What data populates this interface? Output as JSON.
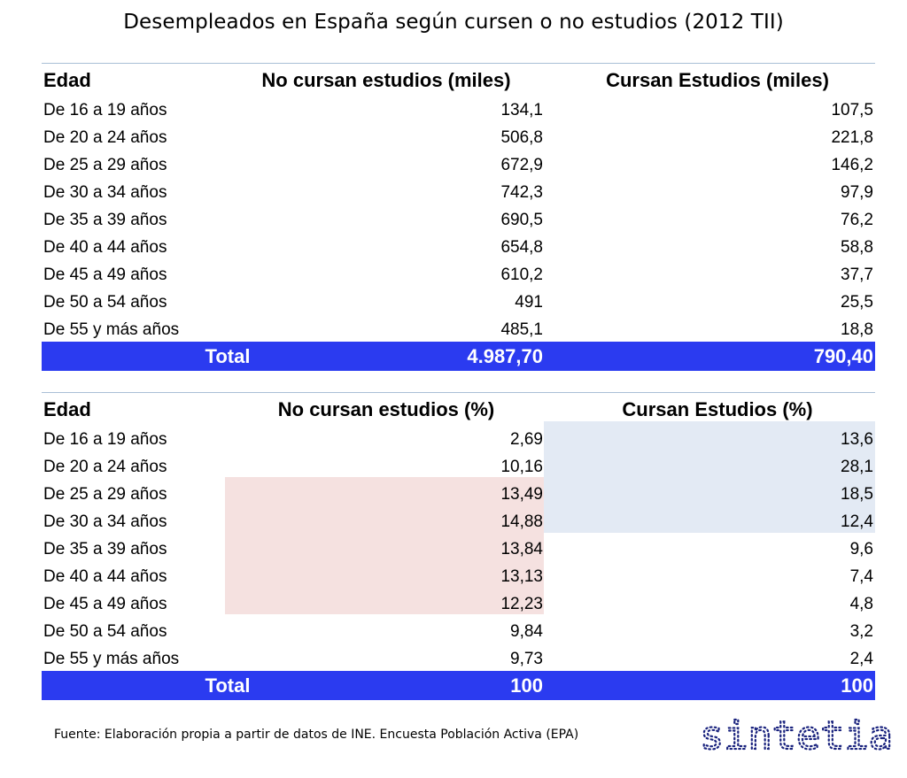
{
  "title": "Desempleados en España según cursen o no estudios (2012 TII)",
  "table1": {
    "headers": [
      "Edad",
      "No cursan estudios (miles)",
      "Cursan Estudios (miles)"
    ],
    "rows": [
      {
        "age": "De 16 a 19 años",
        "no": "134,1",
        "si": "107,5"
      },
      {
        "age": "De 20 a 24 años",
        "no": "506,8",
        "si": "221,8"
      },
      {
        "age": "De 25 a 29 años",
        "no": "672,9",
        "si": "146,2"
      },
      {
        "age": "De 30 a 34 años",
        "no": "742,3",
        "si": "97,9"
      },
      {
        "age": "De 35 a 39 años",
        "no": "690,5",
        "si": "76,2"
      },
      {
        "age": "De 40 a 44 años",
        "no": "654,8",
        "si": "58,8"
      },
      {
        "age": "De 45 a 49 años",
        "no": "610,2",
        "si": "37,7"
      },
      {
        "age": "De 50 a 54 años",
        "no": "491",
        "si": "25,5"
      },
      {
        "age": "De 55 y más años",
        "no": "485,1",
        "si": "18,8"
      }
    ],
    "total": {
      "label": "Total",
      "no": "4.987,70",
      "si": "790,40"
    }
  },
  "table2": {
    "headers": [
      "Edad",
      "No cursan estudios (%)",
      "Cursan Estudios (%)"
    ],
    "rows": [
      {
        "age": "De 16 a 19 años",
        "no": "2,69",
        "si": "13,6"
      },
      {
        "age": "De 20 a 24 años",
        "no": "10,16",
        "si": "28,1"
      },
      {
        "age": "De 25 a 29 años",
        "no": "13,49",
        "si": "18,5"
      },
      {
        "age": "De 30 a 34 años",
        "no": "14,88",
        "si": "12,4"
      },
      {
        "age": "De 35 a 39 años",
        "no": "13,84",
        "si": "9,6"
      },
      {
        "age": "De 40 a 44 años",
        "no": "13,13",
        "si": "7,4"
      },
      {
        "age": "De 45 a 49 años",
        "no": "12,23",
        "si": "4,8"
      },
      {
        "age": "De 50 a 54 años",
        "no": "9,84",
        "si": "3,2"
      },
      {
        "age": "De 55 y más años",
        "no": "9,73",
        "si": "2,4"
      }
    ],
    "total": {
      "label": "Total",
      "no": "100",
      "si": "100"
    }
  },
  "colors": {
    "total_bar": "#2b3bf0",
    "highlight_red": "#f5e1e0",
    "highlight_blue": "#e3eaf4",
    "logo": "#1a237e"
  },
  "footer": "Fuente: Elaboración propia a partir de datos de INE. Encuesta Población Activa (EPA)",
  "logo_text": "sintetia"
}
